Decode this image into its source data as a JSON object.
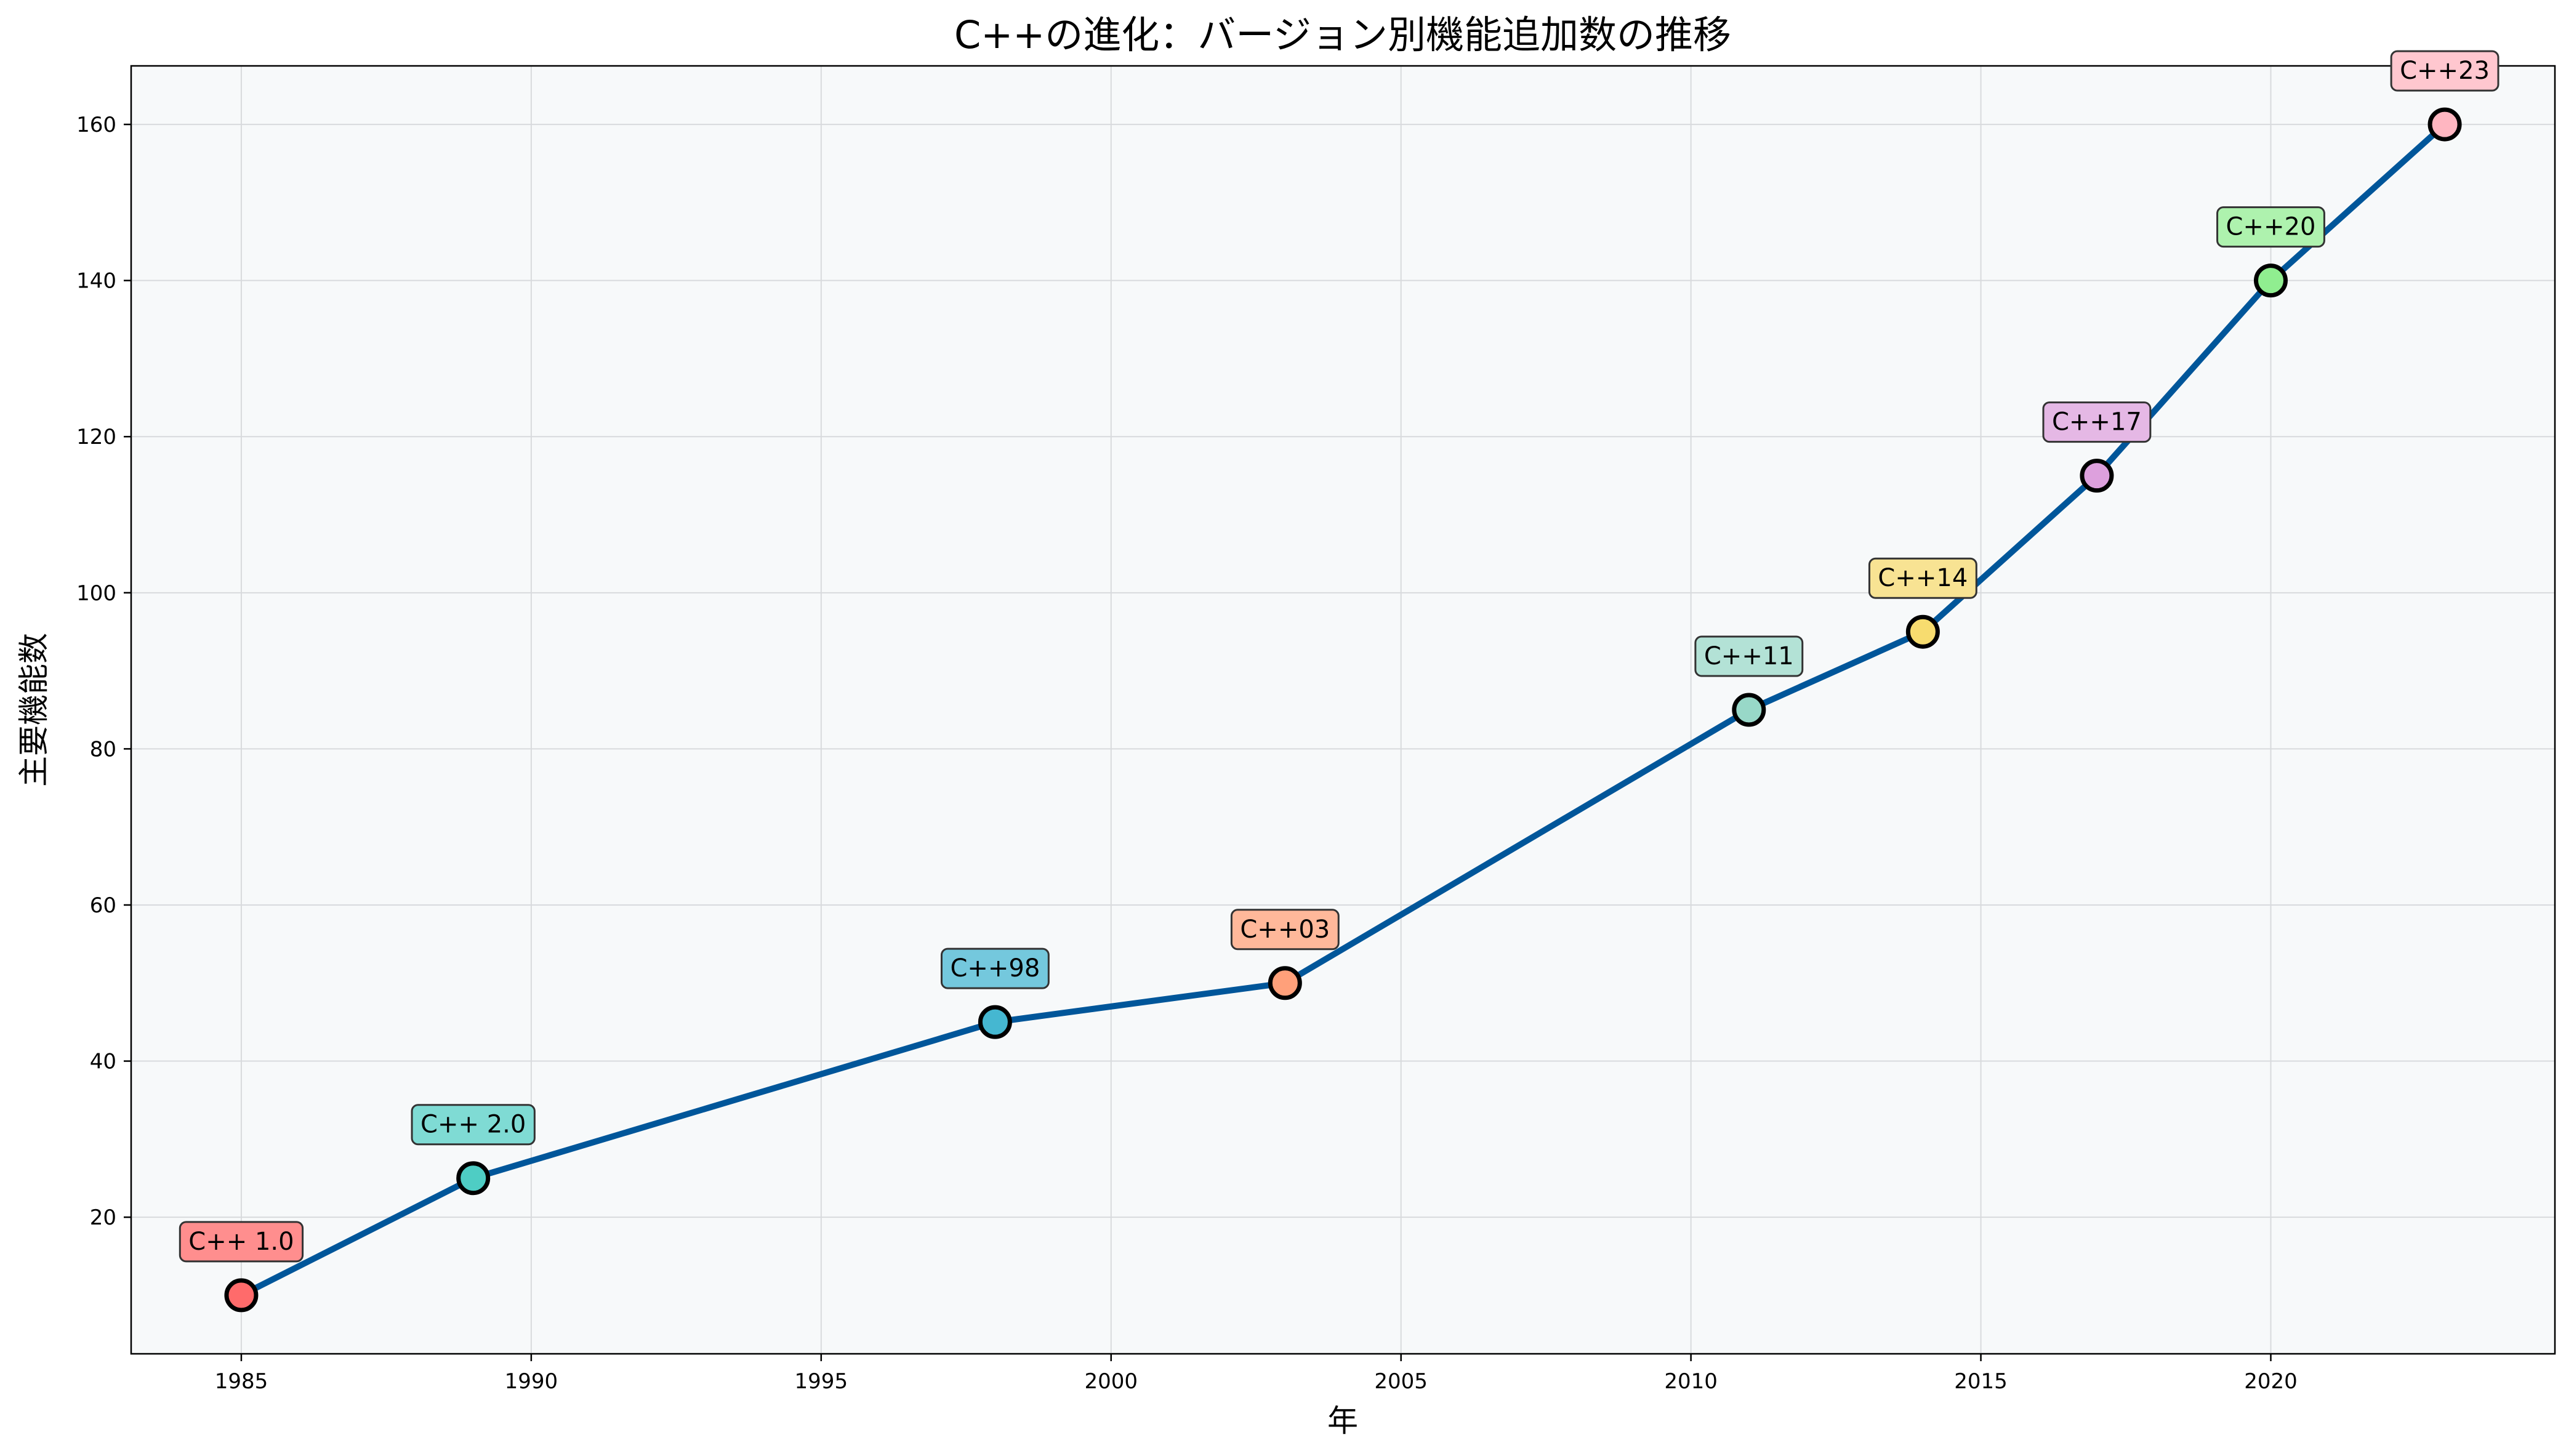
{
  "chart_data": {
    "type": "line",
    "title": "C++の進化：バージョン別機能追加数の推移",
    "xlabel": "年",
    "ylabel": "主要機能数",
    "xlim": [
      1983.1,
      2024.9
    ],
    "ylim": [
      2.5,
      167.5
    ],
    "xticks": [
      1985,
      1990,
      1995,
      2000,
      2005,
      2010,
      2015,
      2020
    ],
    "yticks": [
      20,
      40,
      60,
      80,
      100,
      120,
      140,
      160
    ],
    "grid": true,
    "line_color": "#00569A",
    "background_color": "#F7F9FA",
    "points": [
      {
        "label": "C++ 1.0",
        "x": 1985,
        "y": 10,
        "color": "#FF6B6B",
        "label_bg": "#FF8E8E"
      },
      {
        "label": "C++ 2.0",
        "x": 1989,
        "y": 25,
        "color": "#4ECDC4",
        "label_bg": "#7FDBD4"
      },
      {
        "label": "C++98",
        "x": 1998,
        "y": 45,
        "color": "#45B7D1",
        "label_bg": "#74C8DD"
      },
      {
        "label": "C++03",
        "x": 2003,
        "y": 50,
        "color": "#FFA07A",
        "label_bg": "#FFB89A"
      },
      {
        "label": "C++11",
        "x": 2011,
        "y": 85,
        "color": "#98D8C8",
        "label_bg": "#B3E2D6"
      },
      {
        "label": "C++14",
        "x": 2014,
        "y": 95,
        "color": "#F7DC6F",
        "label_bg": "#F8E393"
      },
      {
        "label": "C++17",
        "x": 2017,
        "y": 115,
        "color": "#DDA0DD",
        "label_bg": "#E5B8E5"
      },
      {
        "label": "C++20",
        "x": 2020,
        "y": 140,
        "color": "#90EE90",
        "label_bg": "#AEF2AE"
      },
      {
        "label": "C++23",
        "x": 2023,
        "y": 160,
        "color": "#FFB6C1",
        "label_bg": "#FFC7CF"
      }
    ]
  }
}
